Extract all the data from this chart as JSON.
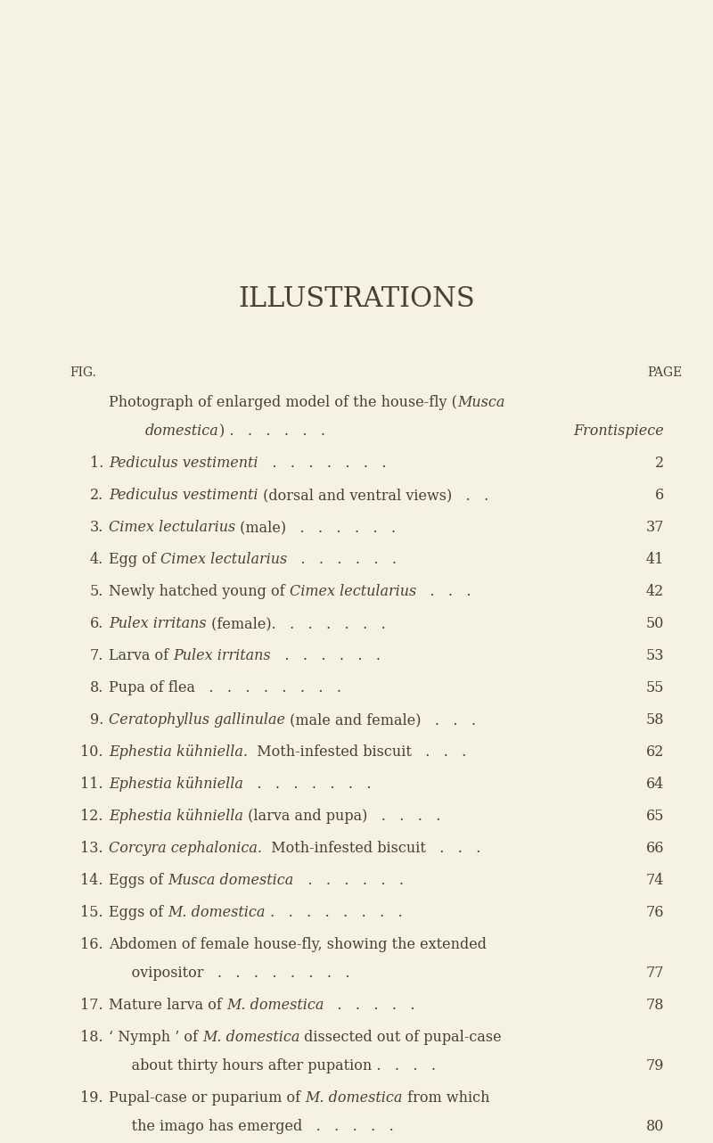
{
  "background_color": "#f5f2e3",
  "text_color": "#4a3f35",
  "title": "ILLUSTRATIONS",
  "fig_label": "FIG.",
  "page_label": "PAGE",
  "entries": [
    {
      "num": "",
      "line1_parts": [
        {
          "text": "Photograph of enlarged model of the house-fly (",
          "italic": false
        },
        {
          "text": "Musca",
          "italic": true
        }
      ],
      "line2_parts": [
        {
          "text": "        ",
          "italic": false
        },
        {
          "text": "domestica",
          "italic": true
        },
        {
          "text": ") .   .   .   .   .   .",
          "italic": false
        }
      ],
      "page": "Frontispiece",
      "page_italic": true,
      "page_on_line2": true
    },
    {
      "num": "1.",
      "line1_parts": [
        {
          "text": "Pediculus vestimenti",
          "italic": true
        },
        {
          "text": "   .   .   .   .   .   .   .",
          "italic": false
        }
      ],
      "line2_parts": [],
      "page": "2",
      "page_italic": false,
      "page_on_line2": false
    },
    {
      "num": "2.",
      "line1_parts": [
        {
          "text": "Pediculus vestimenti",
          "italic": true
        },
        {
          "text": " (dorsal and ventral views)   .   .",
          "italic": false
        }
      ],
      "line2_parts": [],
      "page": "6",
      "page_italic": false,
      "page_on_line2": false
    },
    {
      "num": "3.",
      "line1_parts": [
        {
          "text": "Cimex lectularius",
          "italic": true
        },
        {
          "text": " (male)   .   .   .   .   .   .",
          "italic": false
        }
      ],
      "line2_parts": [],
      "page": "37",
      "page_italic": false,
      "page_on_line2": false
    },
    {
      "num": "4.",
      "line1_parts": [
        {
          "text": "Egg of ",
          "italic": false
        },
        {
          "text": "Cimex lectularius",
          "italic": true
        },
        {
          "text": "   .   .   .   .   .   .",
          "italic": false
        }
      ],
      "line2_parts": [],
      "page": "41",
      "page_italic": false,
      "page_on_line2": false
    },
    {
      "num": "5.",
      "line1_parts": [
        {
          "text": "Newly hatched young of ",
          "italic": false
        },
        {
          "text": "Cimex lectularius",
          "italic": true
        },
        {
          "text": "   .   .   .",
          "italic": false
        }
      ],
      "line2_parts": [],
      "page": "42",
      "page_italic": false,
      "page_on_line2": false
    },
    {
      "num": "6.",
      "line1_parts": [
        {
          "text": "Pulex irritans",
          "italic": true
        },
        {
          "text": " (female).   .   .   .   .   .   .",
          "italic": false
        }
      ],
      "line2_parts": [],
      "page": "50",
      "page_italic": false,
      "page_on_line2": false
    },
    {
      "num": "7.",
      "line1_parts": [
        {
          "text": "Larva of ",
          "italic": false
        },
        {
          "text": "Pulex irritans",
          "italic": true
        },
        {
          "text": "   .   .   .   .   .   .",
          "italic": false
        }
      ],
      "line2_parts": [],
      "page": "53",
      "page_italic": false,
      "page_on_line2": false
    },
    {
      "num": "8.",
      "line1_parts": [
        {
          "text": "Pupa of flea   .   .   .   .   .   .   .   .",
          "italic": false
        }
      ],
      "line2_parts": [],
      "page": "55",
      "page_italic": false,
      "page_on_line2": false
    },
    {
      "num": "9.",
      "line1_parts": [
        {
          "text": "Ceratophyllus gallinulae",
          "italic": true
        },
        {
          "text": " (male and female)   .   .   .",
          "italic": false
        }
      ],
      "line2_parts": [],
      "page": "58",
      "page_italic": false,
      "page_on_line2": false
    },
    {
      "num": "10.",
      "line1_parts": [
        {
          "text": "Ephestia kühniella.",
          "italic": true
        },
        {
          "text": "  Moth-infested biscuit   .   .   .",
          "italic": false
        }
      ],
      "line2_parts": [],
      "page": "62",
      "page_italic": false,
      "page_on_line2": false
    },
    {
      "num": "11.",
      "line1_parts": [
        {
          "text": "Ephestia kühniella",
          "italic": true
        },
        {
          "text": "   .   .   .   .   .   .   .",
          "italic": false
        }
      ],
      "line2_parts": [],
      "page": "64",
      "page_italic": false,
      "page_on_line2": false
    },
    {
      "num": "12.",
      "line1_parts": [
        {
          "text": "Ephestia kühniella",
          "italic": true
        },
        {
          "text": " (larva and pupa)   .   .   .   .",
          "italic": false
        }
      ],
      "line2_parts": [],
      "page": "65",
      "page_italic": false,
      "page_on_line2": false
    },
    {
      "num": "13.",
      "line1_parts": [
        {
          "text": "Corcyra cephalonica.",
          "italic": true
        },
        {
          "text": "  Moth-infested biscuit   .   .   .",
          "italic": false
        }
      ],
      "line2_parts": [],
      "page": "66",
      "page_italic": false,
      "page_on_line2": false
    },
    {
      "num": "14.",
      "line1_parts": [
        {
          "text": "Eggs of ",
          "italic": false
        },
        {
          "text": "Musca domestica",
          "italic": true
        },
        {
          "text": "   .   .   .   .   .   .",
          "italic": false
        }
      ],
      "line2_parts": [],
      "page": "74",
      "page_italic": false,
      "page_on_line2": false
    },
    {
      "num": "15.",
      "line1_parts": [
        {
          "text": "Eggs of ",
          "italic": false
        },
        {
          "text": "M. domestica",
          "italic": true
        },
        {
          "text": " .   .   .   .   .   .   .   .",
          "italic": false
        }
      ],
      "line2_parts": [],
      "page": "76",
      "page_italic": false,
      "page_on_line2": false
    },
    {
      "num": "16.",
      "line1_parts": [
        {
          "text": "Abdomen of female house-fly, showing the extended",
          "italic": false
        }
      ],
      "line2_parts": [
        {
          "text": "     ovipositor   .   .   .   .   .   .   .   .",
          "italic": false
        }
      ],
      "page": "77",
      "page_italic": false,
      "page_on_line2": true
    },
    {
      "num": "17.",
      "line1_parts": [
        {
          "text": "Mature larva of ",
          "italic": false
        },
        {
          "text": "M. domestica",
          "italic": true
        },
        {
          "text": "   .   .   .   .   .",
          "italic": false
        }
      ],
      "line2_parts": [],
      "page": "78",
      "page_italic": false,
      "page_on_line2": false
    },
    {
      "num": "18.",
      "line1_parts": [
        {
          "text": "‘ Nymph ’ of ",
          "italic": false
        },
        {
          "text": "M. domestica",
          "italic": true
        },
        {
          "text": " dissected out of pupal-case",
          "italic": false
        }
      ],
      "line2_parts": [
        {
          "text": "     about thirty hours after pupation .   .   .   .",
          "italic": false
        }
      ],
      "page": "79",
      "page_italic": false,
      "page_on_line2": true
    },
    {
      "num": "19.",
      "line1_parts": [
        {
          "text": "Pupal-case or puparium of ",
          "italic": false
        },
        {
          "text": "M. domestica",
          "italic": true
        },
        {
          "text": " from which",
          "italic": false
        }
      ],
      "line2_parts": [
        {
          "text": "     the imago has emerged   .   .   .   .   .",
          "italic": false
        }
      ],
      "page": "80",
      "page_italic": false,
      "page_on_line2": true
    }
  ]
}
